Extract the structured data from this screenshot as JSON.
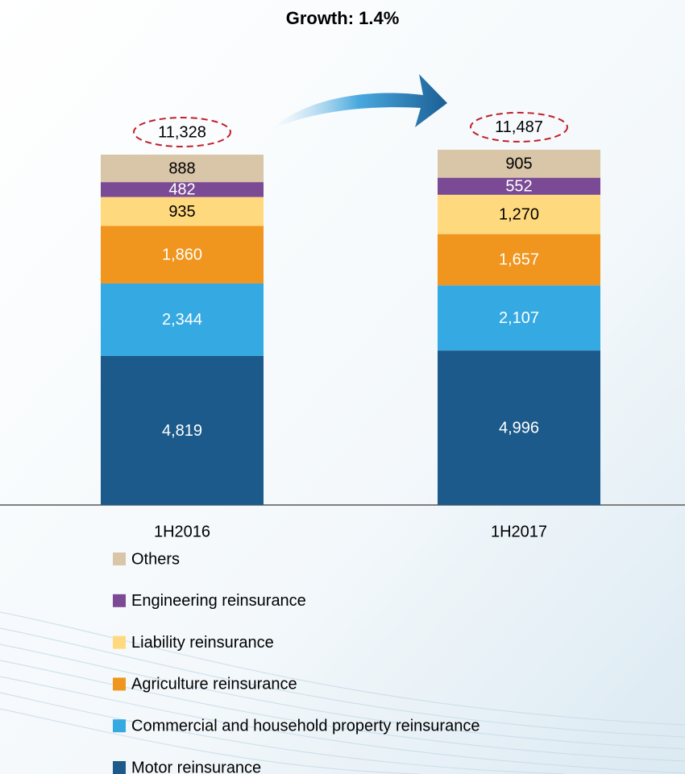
{
  "chart_data": {
    "type": "stacked_bar",
    "title": "Growth: 1.4%",
    "categories": [
      "1H2016",
      "1H2017"
    ],
    "series": [
      {
        "name": "Motor reinsurance",
        "color": "#1b5a8a",
        "values": [
          4819,
          4996
        ],
        "value_labels": [
          "4,819",
          "4,996"
        ]
      },
      {
        "name": "Commercial and household property reinsurance",
        "color": "#35a9e1",
        "values": [
          2344,
          2107
        ],
        "value_labels": [
          "2,344",
          "2,107"
        ]
      },
      {
        "name": "Agriculture reinsurance",
        "color": "#f0951d",
        "values": [
          1860,
          1657
        ],
        "value_labels": [
          "1,860",
          "1,657"
        ]
      },
      {
        "name": "Liability reinsurance",
        "color": "#ffd97e",
        "values": [
          935,
          1270
        ],
        "value_labels": [
          "935",
          "1,270"
        ]
      },
      {
        "name": "Engineering reinsurance",
        "color": "#7b4a94",
        "values": [
          482,
          552
        ],
        "value_labels": [
          "482",
          "552"
        ]
      },
      {
        "name": "Others",
        "color": "#d9c5a8",
        "values": [
          888,
          905
        ],
        "value_labels": [
          "888",
          "905"
        ]
      }
    ],
    "totals": {
      "values": [
        11328,
        11487
      ],
      "value_labels": [
        "11,328",
        "11,487"
      ]
    },
    "legend": "bottom-left"
  }
}
